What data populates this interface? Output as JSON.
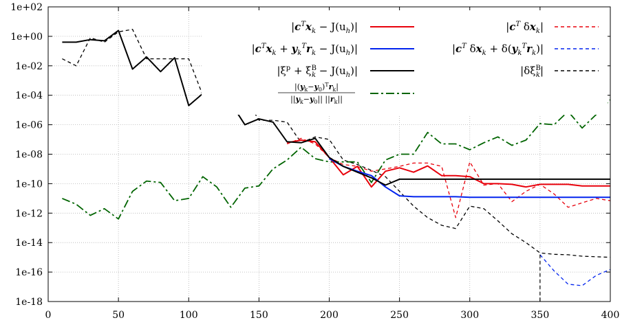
{
  "chart_data": {
    "type": "line",
    "title": "",
    "xlabel": "",
    "ylabel": "",
    "y_scale": "log",
    "xlim": [
      0,
      400
    ],
    "ylim": [
      1e-18,
      100
    ],
    "grid": true,
    "legend_position": "top-right",
    "x_ticks": [
      "0",
      "50",
      "100",
      "150",
      "200",
      "250",
      "300",
      "350",
      "400"
    ],
    "y_ticks": [
      "1e+02",
      "1e+00",
      "1e-02",
      "1e-04",
      "1e-06",
      "1e-08",
      "1e-10",
      "1e-12",
      "1e-14",
      "1e-16",
      "1e-18"
    ],
    "series": [
      {
        "name": "|c^T x_k − J(u_h)|",
        "color": "#e8000b",
        "style": "solid",
        "x": [
          170,
          180,
          190,
          200,
          210,
          220,
          230,
          240,
          250,
          260,
          270,
          280,
          290,
          300,
          310,
          320,
          330,
          340,
          350,
          360,
          370,
          380,
          390,
          400
        ],
        "y": [
          6e-08,
          9e-08,
          7e-08,
          6e-09,
          4e-10,
          1.5e-09,
          6e-11,
          7e-10,
          1.2e-09,
          6e-10,
          1.6e-09,
          3.5e-10,
          3.5e-10,
          3e-10,
          1e-10,
          1e-10,
          9e-11,
          6e-11,
          9e-11,
          9e-11,
          9e-11,
          7e-11,
          7e-11,
          7e-11
        ]
      },
      {
        "name": "|c^T x_k + y_k^T r_k − J(u_h)|",
        "color": "#0022ee",
        "style": "solid",
        "x": [
          200,
          210,
          220,
          230,
          240,
          250,
          260,
          270,
          280,
          290,
          300,
          310,
          320,
          330,
          340,
          350,
          360,
          370,
          380,
          390,
          400
        ],
        "y": [
          5e-09,
          1.5e-09,
          7e-10,
          3.5e-10,
          6e-11,
          1.5e-11,
          1.3e-11,
          1.3e-11,
          1.3e-11,
          1.3e-11,
          1.2e-11,
          1.2e-11,
          1.2e-11,
          1.2e-11,
          1.2e-11,
          1.2e-11,
          1.2e-11,
          1.2e-11,
          1.2e-11,
          1.2e-11,
          1.2e-11
        ]
      },
      {
        "name": "|ξ^p + ξ_k^B − J(u_h)|",
        "color": "#000000",
        "style": "solid",
        "x": [
          10,
          20,
          30,
          40,
          50,
          60,
          70,
          80,
          90,
          100,
          110,
          120,
          130,
          140,
          150,
          160,
          170,
          180,
          190,
          200,
          210,
          220,
          230,
          240,
          250,
          260,
          270,
          280,
          290,
          300,
          310,
          320,
          330,
          340,
          350,
          360,
          370,
          380,
          390,
          400
        ],
        "y": [
          0.4,
          0.4,
          0.6,
          0.5,
          2.5,
          0.006,
          0.04,
          0.004,
          0.035,
          2e-05,
          0.00013,
          0.00014,
          3e-05,
          1e-06,
          2.5e-06,
          1.5e-06,
          7e-08,
          6e-08,
          1.2e-07,
          6e-09,
          1.5e-09,
          6e-10,
          2.5e-10,
          8e-11,
          2e-10,
          2e-10,
          2e-10,
          2e-10,
          2e-10,
          2e-10,
          2e-10,
          2e-10,
          2e-10,
          2e-10,
          2e-10,
          2e-10,
          2e-10,
          2e-10,
          2e-10,
          2e-10
        ]
      },
      {
        "name": "|(y_k − y_0)^T r_k| / (||y_k − y_0|| ||r_k||)",
        "color": "#006400",
        "style": "dashdot",
        "x": [
          10,
          20,
          30,
          40,
          50,
          60,
          70,
          80,
          90,
          100,
          110,
          120,
          130,
          140,
          150,
          160,
          170,
          180,
          190,
          200,
          210,
          220,
          230,
          240,
          250,
          260,
          270,
          280,
          290,
          300,
          310,
          320,
          330,
          340,
          350,
          360,
          370,
          380,
          390,
          400
        ],
        "y": [
          1e-11,
          4e-12,
          7e-13,
          2e-12,
          4e-13,
          3e-11,
          1.5e-10,
          1.2e-10,
          7e-12,
          1e-11,
          3e-10,
          6e-11,
          2.5e-12,
          5e-11,
          7e-11,
          1e-09,
          4e-09,
          3e-08,
          5e-09,
          3e-09,
          3e-09,
          3e-09,
          1.2e-10,
          4e-09,
          1e-08,
          1e-08,
          3e-07,
          5e-08,
          5e-08,
          2e-08,
          6e-08,
          1.5e-07,
          4e-08,
          9e-08,
          1.2e-06,
          1e-06,
          8e-06,
          6e-07,
          5e-06,
          5e-05
        ]
      },
      {
        "name": "|c^T δx_k|",
        "color": "#e8000b",
        "style": "dashed",
        "x": [
          170,
          180,
          190,
          200,
          210,
          220,
          230,
          240,
          250,
          260,
          270,
          280,
          290,
          300,
          310,
          320,
          330,
          340,
          350,
          360,
          370,
          380,
          390,
          400
        ],
        "y": [
          5e-08,
          1.2e-07,
          5e-08,
          6e-09,
          2e-09,
          1.5e-09,
          7e-10,
          1e-09,
          1.5e-09,
          2.5e-09,
          2.5e-09,
          1.5e-09,
          5e-13,
          3e-09,
          8e-11,
          1e-10,
          6e-12,
          3e-11,
          9e-11,
          2e-11,
          2.5e-12,
          5e-12,
          1e-11,
          7e-12
        ]
      },
      {
        "name": "|c^T δx_k + δ(y_k^T r_k)|",
        "color": "#0022ee",
        "style": "dashed",
        "x": [
          350,
          360,
          370,
          380,
          390,
          400
        ],
        "y": [
          1.5e-15,
          1.2e-16,
          1.5e-17,
          1.2e-17,
          6e-17,
          1.5e-16
        ]
      },
      {
        "name": "|δξ_k^B|",
        "color": "#000000",
        "style": "dashed",
        "x": [
          10,
          20,
          30,
          40,
          50,
          60,
          70,
          80,
          90,
          100,
          110,
          120,
          130,
          140,
          150,
          160,
          170,
          180,
          190,
          200,
          210,
          220,
          230,
          240,
          250,
          260,
          270,
          280,
          290,
          300,
          310,
          320,
          330,
          340,
          350,
          360,
          370,
          380,
          390,
          400
        ],
        "y": [
          0.03,
          0.01,
          0.8,
          0.4,
          2,
          3,
          0.03,
          0.03,
          0.03,
          0.03,
          0.0001,
          1.2e-05,
          8e-05,
          8e-05,
          2e-06,
          2e-06,
          1.5e-06,
          6e-08,
          1.5e-07,
          1e-07,
          4e-09,
          2e-09,
          8e-10,
          3e-10,
          3e-11,
          3e-12,
          5e-13,
          1.5e-13,
          9e-14,
          3e-12,
          2e-12,
          3e-13,
          4e-14,
          1e-14,
          2e-15,
          1.6e-15,
          1.5e-15,
          1.2e-15,
          1.1e-15,
          1e-15
        ]
      }
    ]
  },
  "legend_entries": [
    {
      "label_main": "|c",
      "label_rest": "x",
      "label_tail": " − J(u",
      "label_end": ")|"
    },
    {
      "label": "|c^T δx_k|"
    }
  ]
}
